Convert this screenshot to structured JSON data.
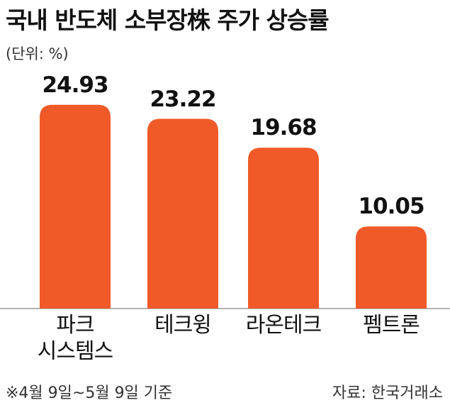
{
  "chart_data": {
    "type": "bar",
    "title": "국내 반도체 소부장株 주가 상승률",
    "subtitle": "(단위: %)",
    "categories": [
      "파크\n시스템스",
      "테크윙",
      "라온테크",
      "펨트론"
    ],
    "values": [
      24.93,
      23.22,
      19.68,
      10.05
    ],
    "color": "#f05a28",
    "ylim": [
      0,
      25
    ],
    "note": "※4월 9일~5월 9일 기준",
    "source": "자료: 한국거래소"
  }
}
